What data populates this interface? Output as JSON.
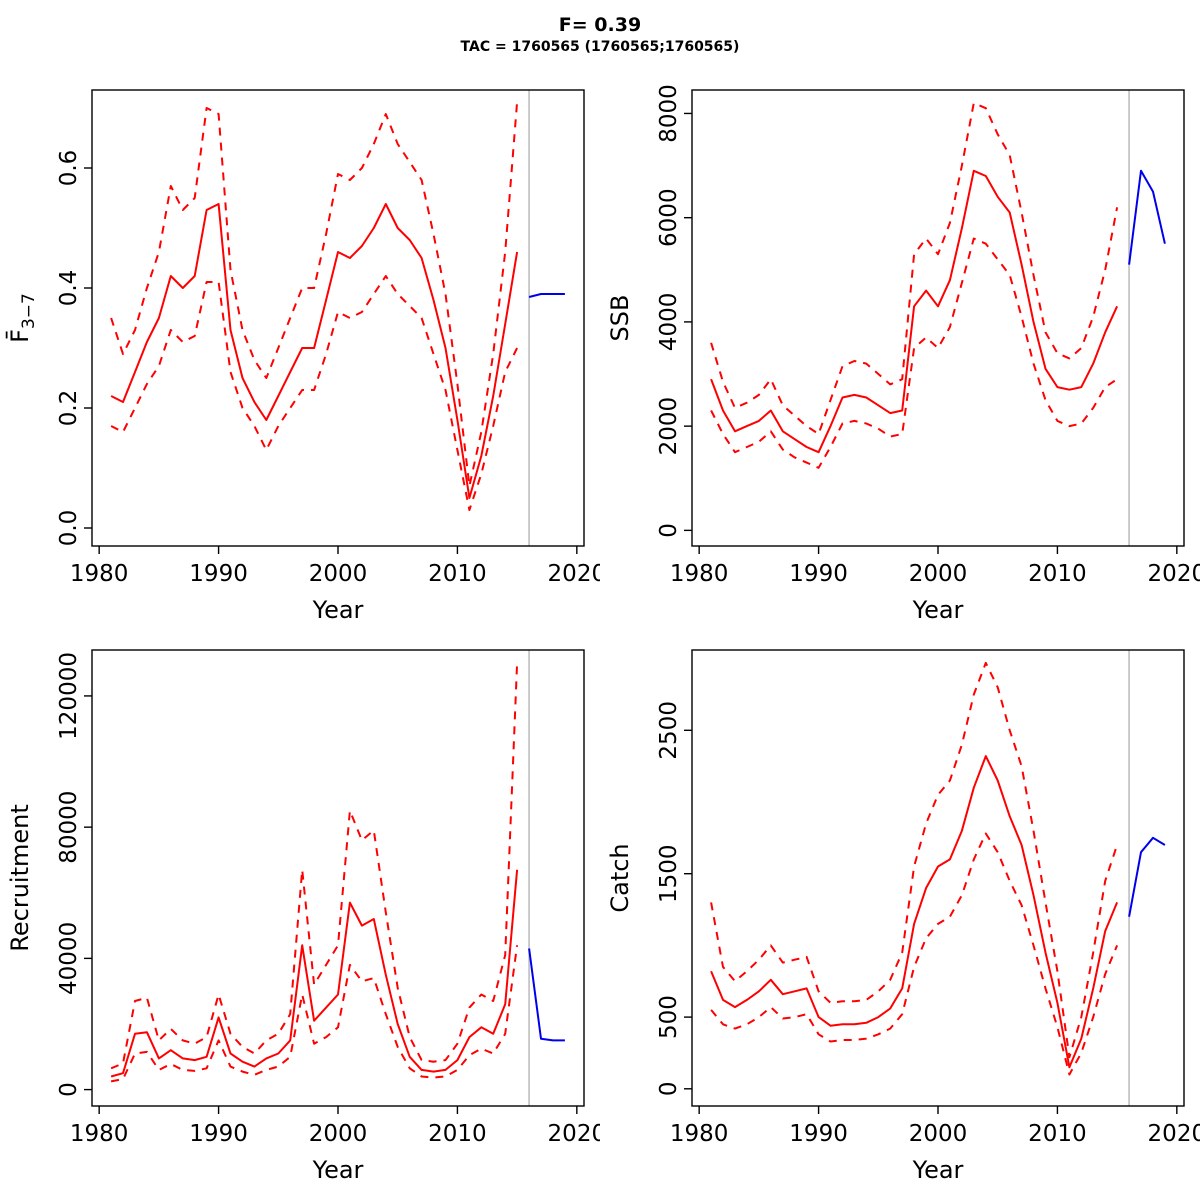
{
  "header": {
    "title": "F= 0.39",
    "subtitle": "TAC = 1760565 (1760565;1760565)"
  },
  "colors": {
    "median": "#FF0000",
    "interval": "#FF0000",
    "forecast": "#0000EE",
    "vline": "#BEBEBE",
    "axis": "#000000"
  },
  "chart_data": [
    {
      "type": "line",
      "name": "fbar",
      "xlabel": "Year",
      "ylabel": "F̄",
      "ylabel_sub": "3−7",
      "xlim": [
        1979.4,
        2020.6
      ],
      "ylim": [
        -0.03,
        0.73
      ],
      "xticks": [
        1980,
        1990,
        2000,
        2010,
        2020
      ],
      "xtick_labels": [
        "1980",
        "1990",
        "2000",
        "2010",
        "2020"
      ],
      "yticks": [
        0.0,
        0.2,
        0.4,
        0.6
      ],
      "ytick_labels": [
        "0.0",
        "0.2",
        "0.4",
        "0.6"
      ],
      "vline": 2016,
      "x": [
        1981,
        1982,
        1983,
        1984,
        1985,
        1986,
        1987,
        1988,
        1989,
        1990,
        1991,
        1992,
        1993,
        1994,
        1995,
        1996,
        1997,
        1998,
        1999,
        2000,
        2001,
        2002,
        2003,
        2004,
        2005,
        2006,
        2007,
        2008,
        2009,
        2010,
        2011,
        2012,
        2013,
        2014,
        2015
      ],
      "series": [
        {
          "name": "upper-ci",
          "style": "dashed",
          "color": "#FF0000",
          "values": [
            0.35,
            0.29,
            0.33,
            0.4,
            0.46,
            0.57,
            0.53,
            0.55,
            0.7,
            0.69,
            0.43,
            0.33,
            0.28,
            0.25,
            0.3,
            0.35,
            0.4,
            0.4,
            0.49,
            0.59,
            0.58,
            0.6,
            0.64,
            0.69,
            0.64,
            0.61,
            0.58,
            0.49,
            0.39,
            0.24,
            0.07,
            0.16,
            0.29,
            0.46,
            0.71
          ]
        },
        {
          "name": "median",
          "style": "solid",
          "color": "#FF0000",
          "values": [
            0.22,
            0.21,
            0.26,
            0.31,
            0.35,
            0.42,
            0.4,
            0.42,
            0.53,
            0.54,
            0.33,
            0.25,
            0.21,
            0.18,
            0.22,
            0.26,
            0.3,
            0.3,
            0.38,
            0.46,
            0.45,
            0.47,
            0.5,
            0.54,
            0.5,
            0.48,
            0.45,
            0.38,
            0.3,
            0.18,
            0.05,
            0.12,
            0.22,
            0.34,
            0.46
          ]
        },
        {
          "name": "lower-ci",
          "style": "dashed",
          "color": "#FF0000",
          "values": [
            0.17,
            0.16,
            0.2,
            0.24,
            0.27,
            0.33,
            0.31,
            0.32,
            0.41,
            0.41,
            0.26,
            0.2,
            0.17,
            0.13,
            0.17,
            0.2,
            0.23,
            0.23,
            0.29,
            0.36,
            0.35,
            0.36,
            0.39,
            0.42,
            0.39,
            0.37,
            0.35,
            0.29,
            0.23,
            0.13,
            0.03,
            0.09,
            0.17,
            0.26,
            0.3
          ]
        },
        {
          "name": "forecast",
          "style": "solid",
          "color": "#0000EE",
          "x": [
            2016,
            2017,
            2018,
            2019
          ],
          "values": [
            0.385,
            0.39,
            0.39,
            0.39
          ]
        }
      ]
    },
    {
      "type": "line",
      "name": "ssb",
      "xlabel": "Year",
      "ylabel": "SSB",
      "ylabel_sub": "",
      "xlim": [
        1979.4,
        2020.6
      ],
      "ylim": [
        -300,
        8450
      ],
      "xticks": [
        1980,
        1990,
        2000,
        2010,
        2020
      ],
      "xtick_labels": [
        "1980",
        "1990",
        "2000",
        "2010",
        "2020"
      ],
      "yticks": [
        0,
        2000,
        4000,
        6000,
        8000
      ],
      "ytick_labels": [
        "0",
        "2000",
        "4000",
        "6000",
        "8000"
      ],
      "vline": 2016,
      "x": [
        1981,
        1982,
        1983,
        1984,
        1985,
        1986,
        1987,
        1988,
        1989,
        1990,
        1991,
        1992,
        1993,
        1994,
        1995,
        1996,
        1997,
        1998,
        1999,
        2000,
        2001,
        2002,
        2003,
        2004,
        2005,
        2006,
        2007,
        2008,
        2009,
        2010,
        2011,
        2012,
        2013,
        2014,
        2015
      ],
      "series": [
        {
          "name": "upper-ci",
          "style": "dashed",
          "color": "#FF0000",
          "values": [
            3600,
            2850,
            2350,
            2450,
            2600,
            2900,
            2400,
            2200,
            2000,
            1850,
            2500,
            3150,
            3250,
            3200,
            3000,
            2800,
            2900,
            5300,
            5600,
            5300,
            5900,
            7000,
            8200,
            8100,
            7600,
            7200,
            6100,
            4900,
            3800,
            3400,
            3300,
            3500,
            4100,
            5000,
            6200
          ]
        },
        {
          "name": "median",
          "style": "solid",
          "color": "#FF0000",
          "values": [
            2900,
            2300,
            1900,
            2000,
            2100,
            2300,
            1900,
            1750,
            1600,
            1500,
            2000,
            2550,
            2600,
            2550,
            2400,
            2250,
            2300,
            4300,
            4600,
            4300,
            4800,
            5800,
            6900,
            6800,
            6400,
            6100,
            5100,
            4000,
            3100,
            2750,
            2700,
            2750,
            3200,
            3800,
            4300
          ]
        },
        {
          "name": "lower-ci",
          "style": "dashed",
          "color": "#FF0000",
          "values": [
            2300,
            1850,
            1500,
            1600,
            1700,
            1900,
            1550,
            1400,
            1300,
            1200,
            1600,
            2050,
            2100,
            2050,
            1950,
            1800,
            1850,
            3500,
            3700,
            3500,
            3900,
            4750,
            5600,
            5500,
            5200,
            4900,
            4100,
            3200,
            2500,
            2100,
            2000,
            2050,
            2350,
            2750,
            2900
          ]
        },
        {
          "name": "forecast",
          "style": "solid",
          "color": "#0000EE",
          "x": [
            2016,
            2017,
            2018,
            2019
          ],
          "values": [
            5100,
            6900,
            6500,
            5500
          ]
        }
      ]
    },
    {
      "type": "line",
      "name": "recruitment",
      "xlabel": "Year",
      "ylabel": "Recruitment",
      "ylabel_sub": "",
      "xlim": [
        1979.4,
        2020.6
      ],
      "ylim": [
        -5000,
        134000
      ],
      "xticks": [
        1980,
        1990,
        2000,
        2010,
        2020
      ],
      "xtick_labels": [
        "1980",
        "1990",
        "2000",
        "2010",
        "2020"
      ],
      "yticks": [
        0,
        40000,
        80000,
        120000
      ],
      "ytick_labels": [
        "0",
        "40000",
        "80000",
        "120000"
      ],
      "vline": 2016,
      "x": [
        1981,
        1982,
        1983,
        1984,
        1985,
        1986,
        1987,
        1988,
        1989,
        1990,
        1991,
        1992,
        1993,
        1994,
        1995,
        1996,
        1997,
        1998,
        1999,
        2000,
        2001,
        2002,
        2003,
        2004,
        2005,
        2006,
        2007,
        2008,
        2009,
        2010,
        2011,
        2012,
        2013,
        2014,
        2015
      ],
      "series": [
        {
          "name": "upper-ci",
          "style": "dashed",
          "color": "#FF0000",
          "values": [
            6500,
            8000,
            27000,
            28000,
            15000,
            18500,
            15000,
            14000,
            16000,
            29000,
            17000,
            13000,
            11000,
            15000,
            17000,
            23000,
            67000,
            32000,
            38000,
            44000,
            85000,
            76000,
            79000,
            54000,
            31000,
            16000,
            9000,
            8500,
            9000,
            14000,
            25000,
            29000,
            27000,
            41000,
            130000
          ]
        },
        {
          "name": "median",
          "style": "solid",
          "color": "#FF0000",
          "values": [
            4000,
            5000,
            17000,
            17500,
            9500,
            12000,
            9500,
            9000,
            10000,
            22000,
            11000,
            8500,
            7000,
            9500,
            11000,
            15000,
            44000,
            21000,
            25000,
            29000,
            57000,
            50000,
            52000,
            35000,
            20000,
            10000,
            6000,
            5500,
            6000,
            9000,
            16000,
            19000,
            17000,
            26000,
            67000
          ]
        },
        {
          "name": "lower-ci",
          "style": "dashed",
          "color": "#FF0000",
          "values": [
            2500,
            3200,
            11000,
            11500,
            6000,
            7800,
            6000,
            5700,
            6500,
            15000,
            7000,
            5500,
            4500,
            6000,
            7000,
            10000,
            29000,
            14000,
            16000,
            19000,
            38000,
            33000,
            34000,
            23000,
            13000,
            6500,
            4000,
            3700,
            4000,
            6000,
            10500,
            12500,
            11000,
            17000,
            44000
          ]
        },
        {
          "name": "forecast",
          "style": "solid",
          "color": "#0000EE",
          "x": [
            2016,
            2017,
            2018,
            2019
          ],
          "values": [
            43000,
            15500,
            15000,
            15000
          ]
        }
      ]
    },
    {
      "type": "line",
      "name": "catch",
      "xlabel": "Year",
      "ylabel": "Catch",
      "ylabel_sub": "",
      "xlim": [
        1979.4,
        2020.6
      ],
      "ylim": [
        -120,
        3060
      ],
      "xticks": [
        1980,
        1990,
        2000,
        2010,
        2020
      ],
      "xtick_labels": [
        "1980",
        "1990",
        "2000",
        "2010",
        "2020"
      ],
      "yticks": [
        0,
        500,
        1500,
        2500
      ],
      "ytick_labels": [
        "0",
        "500",
        "1500",
        "2500"
      ],
      "vline": 2016,
      "x": [
        1981,
        1982,
        1983,
        1984,
        1985,
        1986,
        1987,
        1988,
        1989,
        1990,
        1991,
        1992,
        1993,
        1994,
        1995,
        1996,
        1997,
        1998,
        1999,
        2000,
        2001,
        2002,
        2003,
        2004,
        2005,
        2006,
        2007,
        2008,
        2009,
        2010,
        2011,
        2012,
        2013,
        2014,
        2015
      ],
      "series": [
        {
          "name": "upper-ci",
          "style": "dashed",
          "color": "#FF0000",
          "values": [
            1300,
            850,
            750,
            820,
            900,
            1000,
            880,
            900,
            920,
            680,
            600,
            610,
            610,
            620,
            680,
            760,
            950,
            1550,
            1850,
            2050,
            2150,
            2400,
            2750,
            2970,
            2800,
            2500,
            2250,
            1800,
            1300,
            820,
            220,
            500,
            950,
            1450,
            1700
          ]
        },
        {
          "name": "median",
          "style": "solid",
          "color": "#FF0000",
          "values": [
            820,
            620,
            570,
            620,
            680,
            760,
            660,
            680,
            700,
            500,
            440,
            450,
            450,
            460,
            500,
            560,
            700,
            1150,
            1400,
            1550,
            1600,
            1800,
            2100,
            2320,
            2150,
            1900,
            1700,
            1350,
            950,
            600,
            150,
            350,
            700,
            1100,
            1300
          ]
        },
        {
          "name": "lower-ci",
          "style": "dashed",
          "color": "#FF0000",
          "values": [
            550,
            450,
            420,
            450,
            500,
            570,
            490,
            500,
            520,
            380,
            330,
            340,
            340,
            350,
            380,
            420,
            520,
            850,
            1050,
            1150,
            1200,
            1350,
            1600,
            1780,
            1650,
            1450,
            1280,
            1000,
            700,
            430,
            100,
            250,
            500,
            800,
            1000
          ]
        },
        {
          "name": "forecast",
          "style": "solid",
          "color": "#0000EE",
          "x": [
            2016,
            2017,
            2018,
            2019
          ],
          "values": [
            1200,
            1650,
            1750,
            1700
          ]
        }
      ]
    }
  ]
}
